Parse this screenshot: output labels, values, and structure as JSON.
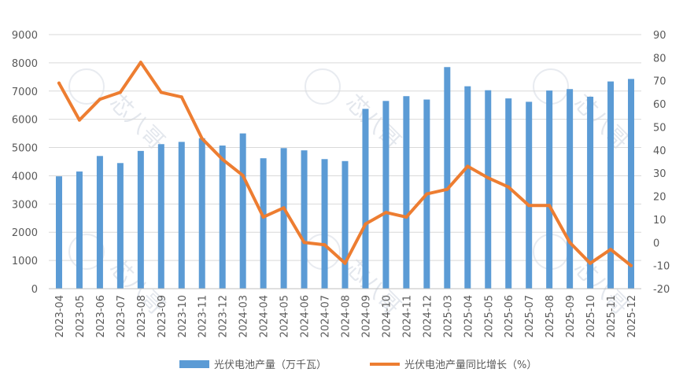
{
  "chart_data": {
    "type": "bar+line",
    "categories": [
      "2023-04",
      "2023-05",
      "2023-06",
      "2023-07",
      "2023-08",
      "2023-09",
      "2023-10",
      "2023-11",
      "2023-12",
      "2024-03",
      "2024-04",
      "2024-05",
      "2024-06",
      "2024-07",
      "2024-08",
      "2024-09",
      "2024-10",
      "2024-11",
      "2024-12",
      "2025-03",
      "2025-04",
      "2025-05",
      "2025-06",
      "2025-07",
      "2025-08",
      "2025-09",
      "2025-10",
      "2025-11",
      "2025-12"
    ],
    "series": [
      {
        "name": "光伏电池产量（万千瓦）",
        "type": "bar",
        "axis": "left",
        "color": "#5b9bd5",
        "values": [
          3980,
          4150,
          4700,
          4450,
          4880,
          5120,
          5200,
          5330,
          5070,
          5500,
          4620,
          4980,
          4900,
          4590,
          4520,
          6370,
          6650,
          6820,
          6700,
          7850,
          7170,
          7030,
          6740,
          6620,
          7020,
          7070,
          6800,
          7340,
          7430
        ]
      },
      {
        "name": "光伏电池产量同比增长（%）",
        "type": "line",
        "axis": "right",
        "color": "#ed7d31",
        "values": [
          69,
          53,
          62,
          65,
          78,
          65,
          63,
          45,
          36,
          29,
          11,
          15,
          0,
          -1,
          -9,
          8,
          13,
          11,
          21,
          23,
          33,
          28,
          24,
          16,
          16,
          0,
          -9,
          -3,
          -10
        ]
      }
    ],
    "y_left": {
      "min": 0,
      "max": 9000,
      "ticks": [
        0,
        1000,
        2000,
        3000,
        4000,
        5000,
        6000,
        7000,
        8000,
        9000
      ]
    },
    "y_right": {
      "min": -20,
      "max": 90,
      "ticks": [
        -20,
        -10,
        0,
        10,
        20,
        30,
        40,
        50,
        60,
        70,
        80,
        90
      ]
    },
    "grid": true,
    "legend_position": "bottom",
    "watermark": "芯八哥"
  }
}
